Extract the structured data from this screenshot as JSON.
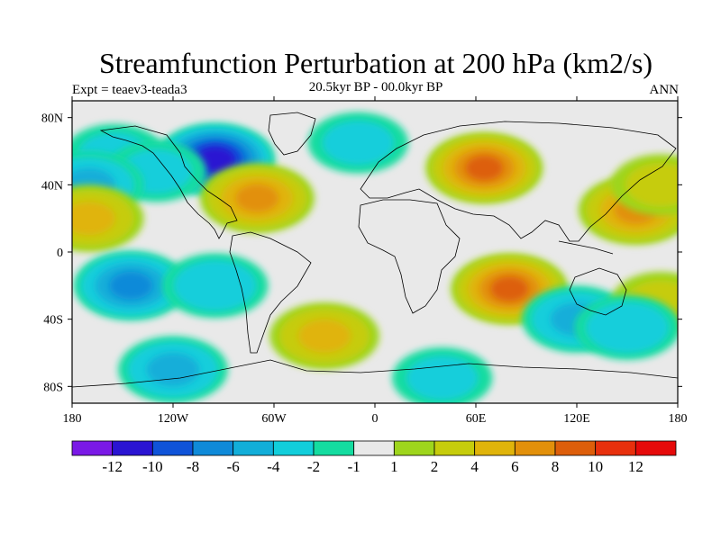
{
  "figure": {
    "title": "Streamfunction Perturbation at 200 hPa (km2/s)",
    "left_label": "Expt = teaev3-teada3",
    "center_label": "20.5kyr BP - 00.0kyr BP",
    "right_label": "ANN"
  },
  "map": {
    "projection": "cylindrical-equidistant",
    "lon_range": [
      -180,
      180
    ],
    "lat_range": [
      -90,
      90
    ],
    "x_ticks": [
      {
        "value": -180,
        "label": "180"
      },
      {
        "value": -120,
        "label": "120W"
      },
      {
        "value": -60,
        "label": "60W"
      },
      {
        "value": 0,
        "label": "0"
      },
      {
        "value": 60,
        "label": "60E"
      },
      {
        "value": 120,
        "label": "120E"
      },
      {
        "value": 180,
        "label": "180"
      }
    ],
    "y_ticks": [
      {
        "value": 80,
        "label": "80N"
      },
      {
        "value": 40,
        "label": "40N"
      },
      {
        "value": 0,
        "label": "0"
      },
      {
        "value": -40,
        "label": "40S"
      },
      {
        "value": -80,
        "label": "80S"
      }
    ],
    "background_color": "#e9e9e9",
    "field_regions": [
      {
        "name": "canada-low",
        "lon": -95,
        "lat": 55,
        "value": -11
      },
      {
        "name": "n-pacific-low",
        "lon": -155,
        "lat": 58,
        "value": -2
      },
      {
        "name": "ne-pacific-low",
        "lon": -130,
        "lat": 48,
        "value": -2
      },
      {
        "name": "subtropical-pacific-low",
        "lon": -170,
        "lat": 40,
        "value": -4
      },
      {
        "name": "eastern-us-high",
        "lon": -70,
        "lat": 32,
        "value": 6
      },
      {
        "name": "n-atlantic-low",
        "lon": -10,
        "lat": 65,
        "value": -2
      },
      {
        "name": "eurasia-high",
        "lon": 65,
        "lat": 50,
        "value": 8
      },
      {
        "name": "w-pacific-high",
        "lon": 155,
        "lat": 25,
        "value": 6
      },
      {
        "name": "nw-pacific-high",
        "lon": 170,
        "lat": 40,
        "value": 2
      },
      {
        "name": "e-pacific-high",
        "lon": -170,
        "lat": 20,
        "value": 4
      },
      {
        "name": "s-pacific-low",
        "lon": -145,
        "lat": -20,
        "value": -6
      },
      {
        "name": "s-pacific-low-2",
        "lon": -95,
        "lat": -20,
        "value": -3
      },
      {
        "name": "indian-ocean-high",
        "lon": 80,
        "lat": -22,
        "value": 8
      },
      {
        "name": "s-atlantic-high",
        "lon": -30,
        "lat": -50,
        "value": 4
      },
      {
        "name": "s-ocean-low",
        "lon": -120,
        "lat": -70,
        "value": -4
      },
      {
        "name": "australia-low",
        "lon": 120,
        "lat": -40,
        "value": -4
      },
      {
        "name": "se-pacific-high",
        "lon": 170,
        "lat": -30,
        "value": 2
      },
      {
        "name": "antarctic-low",
        "lon": 40,
        "lat": -75,
        "value": -2
      },
      {
        "name": "s-pacific-low-3",
        "lon": 150,
        "lat": -45,
        "value": -3
      }
    ]
  },
  "colorbar": {
    "colors": [
      "#7a19e6",
      "#2a14d2",
      "#0f53d9",
      "#0f8ad9",
      "#12aed9",
      "#12cedb",
      "#14dca0",
      "#e9e9e9",
      "#9ed51c",
      "#c6cc0c",
      "#e0b40a",
      "#e2900a",
      "#dd5e0a",
      "#e8300d",
      "#e60a0a"
    ],
    "labels": [
      "-12",
      "-10",
      "-8",
      "-6",
      "-4",
      "-2",
      "-1",
      "1",
      "2",
      "4",
      "6",
      "8",
      "10",
      "12"
    ]
  }
}
